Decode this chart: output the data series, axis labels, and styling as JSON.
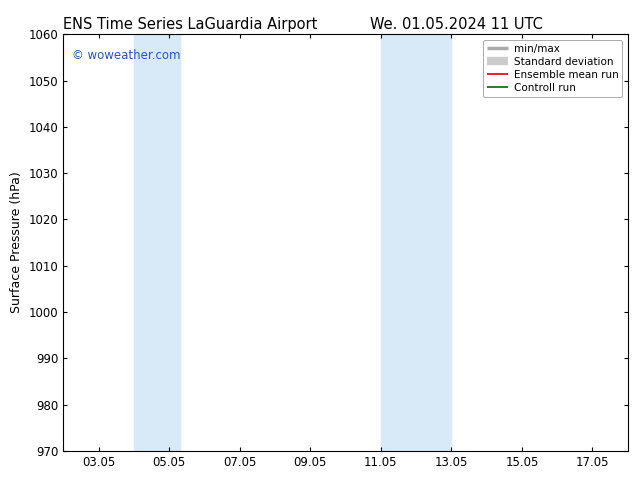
{
  "title_left": "ENS Time Series LaGuardia Airport",
  "title_right": "We. 01.05.2024 11 UTC",
  "ylabel": "Surface Pressure (hPa)",
  "ylim": [
    970,
    1060
  ],
  "yticks": [
    970,
    980,
    990,
    1000,
    1010,
    1020,
    1030,
    1040,
    1050,
    1060
  ],
  "xlim_days": [
    2.0,
    18.0
  ],
  "xtick_labels": [
    "03.05",
    "05.05",
    "07.05",
    "09.05",
    "11.05",
    "13.05",
    "15.05",
    "17.05"
  ],
  "xtick_positions": [
    3,
    5,
    7,
    9,
    11,
    13,
    15,
    17
  ],
  "shaded_bands": [
    {
      "xmin": 4.0,
      "xmax": 5.3
    },
    {
      "xmin": 11.0,
      "xmax": 13.0
    }
  ],
  "shade_color": "#d8eaf8",
  "background_color": "#ffffff",
  "plot_bg_color": "#ffffff",
  "watermark_text": "© woweather.com",
  "watermark_color": "#2255cc",
  "legend_entries": [
    {
      "label": "min/max",
      "color": "#aaaaaa",
      "lw": 2.5
    },
    {
      "label": "Standard deviation",
      "color": "#cccccc",
      "lw": 6
    },
    {
      "label": "Ensemble mean run",
      "color": "#dd0000",
      "lw": 1.2
    },
    {
      "label": "Controll run",
      "color": "#006600",
      "lw": 1.2
    }
  ],
  "title_fontsize": 10.5,
  "tick_fontsize": 8.5,
  "ylabel_fontsize": 9,
  "legend_fontsize": 7.5
}
